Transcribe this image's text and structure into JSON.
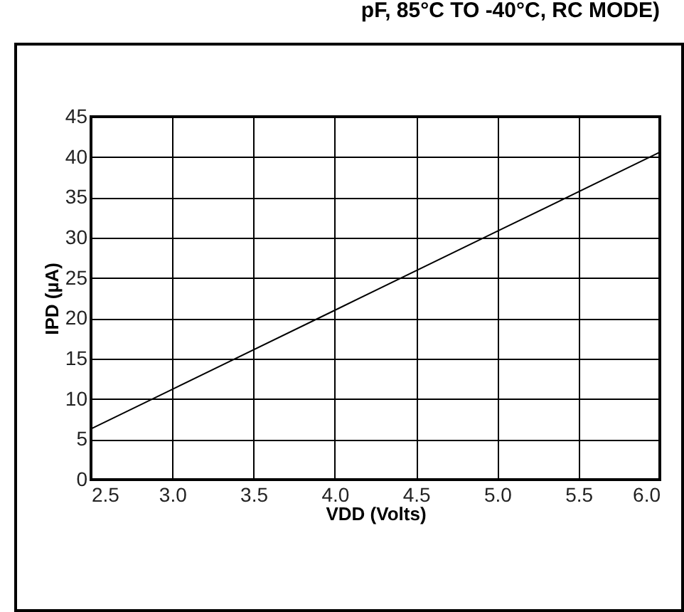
{
  "chart_data": {
    "type": "line",
    "title": "pF, 85°C TO -40°C, RC MODE)",
    "xlabel": "VDD (Volts)",
    "ylabel": "IPD (µA)",
    "x": [
      2.5,
      3.0,
      4.0,
      5.0,
      6.0
    ],
    "series": [
      {
        "color": "#000000",
        "values": [
          6.3,
          11.2,
          21.0,
          30.8,
          40.6
        ]
      }
    ],
    "xlim": [
      2.5,
      6.0
    ],
    "xticks": [
      {
        "value": 2.5,
        "label": "2.5"
      },
      {
        "value": 3,
        "label": "3.0"
      },
      3.5,
      {
        "value": 4,
        "label": "4.0"
      },
      4.5,
      {
        "value": 5,
        "label": "5.0"
      },
      5.5,
      {
        "value": 6,
        "label": "6.0"
      }
    ],
    "ylim": [
      0,
      45
    ],
    "yticks": [
      0,
      5,
      10,
      15,
      20,
      25,
      30,
      35,
      40,
      45
    ],
    "grid": true,
    "marker": "none",
    "line_style": "solid"
  }
}
